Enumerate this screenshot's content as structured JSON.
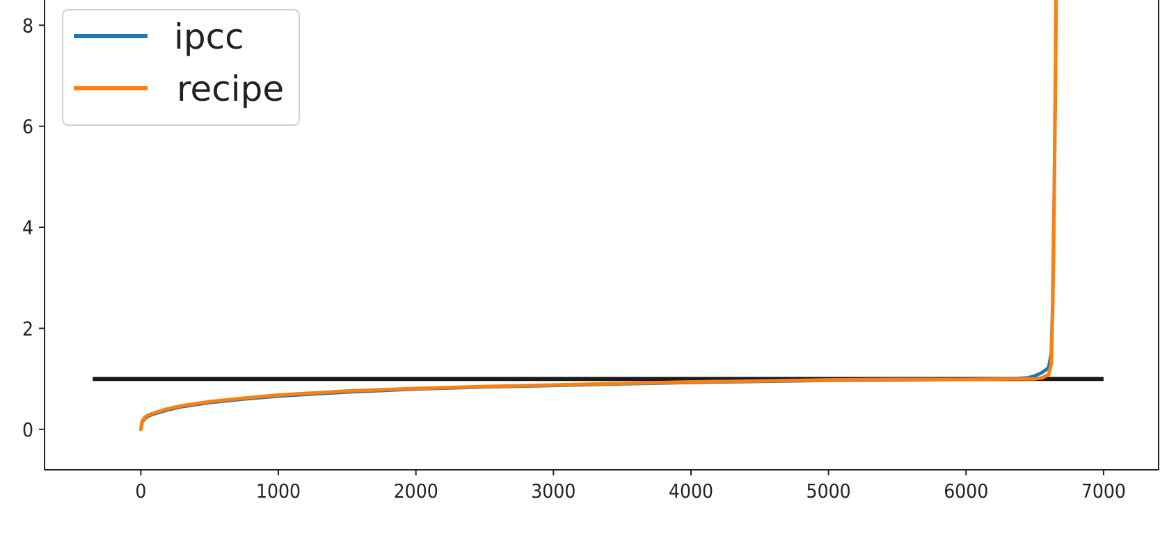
{
  "chart_data": {
    "type": "line",
    "title": "",
    "xlabel": "",
    "ylabel": "",
    "xlim": [
      -700,
      7400
    ],
    "ylim": [
      -0.8,
      8.5
    ],
    "x_ticks": [
      0,
      1000,
      2000,
      3000,
      4000,
      5000,
      6000,
      7000
    ],
    "x_tick_labels": [
      "0",
      "1000",
      "2000",
      "3000",
      "4000",
      "5000",
      "6000",
      "7000"
    ],
    "y_ticks": [
      0,
      2,
      4,
      6,
      8
    ],
    "y_tick_labels": [
      "0",
      "2",
      "4",
      "6",
      "8"
    ],
    "grid": false,
    "legend_position": "upper-left",
    "series": [
      {
        "name": "ipcc",
        "color": "#1f77b4",
        "x": [
          0,
          10,
          30,
          60,
          100,
          200,
          300,
          500,
          750,
          1000,
          1500,
          2000,
          2500,
          3000,
          3500,
          4000,
          4500,
          5000,
          5500,
          6000,
          6300,
          6450,
          6500,
          6550,
          6600,
          6620,
          6630,
          6640,
          6650,
          6655
        ],
        "y": [
          0.0,
          0.15,
          0.22,
          0.27,
          0.31,
          0.39,
          0.45,
          0.53,
          0.6,
          0.66,
          0.74,
          0.8,
          0.84,
          0.87,
          0.9,
          0.93,
          0.95,
          0.97,
          0.98,
          0.99,
          1.0,
          1.02,
          1.06,
          1.12,
          1.22,
          1.5,
          2.5,
          4.5,
          7.0,
          8.6
        ]
      },
      {
        "name": "recipe",
        "color": "#ff7f0e",
        "x": [
          0,
          10,
          30,
          60,
          100,
          200,
          300,
          500,
          750,
          1000,
          1500,
          2000,
          2500,
          3000,
          3500,
          4000,
          4500,
          5000,
          5500,
          6000,
          6300,
          6450,
          6500,
          6550,
          6600,
          6620,
          6630,
          6640,
          6650,
          6655
        ],
        "y": [
          0.0,
          0.17,
          0.24,
          0.29,
          0.33,
          0.41,
          0.47,
          0.55,
          0.62,
          0.68,
          0.76,
          0.81,
          0.85,
          0.88,
          0.91,
          0.94,
          0.96,
          0.98,
          0.99,
          0.99,
          1.0,
          1.0,
          1.0,
          1.02,
          1.08,
          1.3,
          2.4,
          4.4,
          7.0,
          8.6
        ]
      }
    ],
    "reference_line": {
      "y": 1.0,
      "x_start": -350,
      "x_end": 7000,
      "color": "#1a1a1a"
    }
  }
}
